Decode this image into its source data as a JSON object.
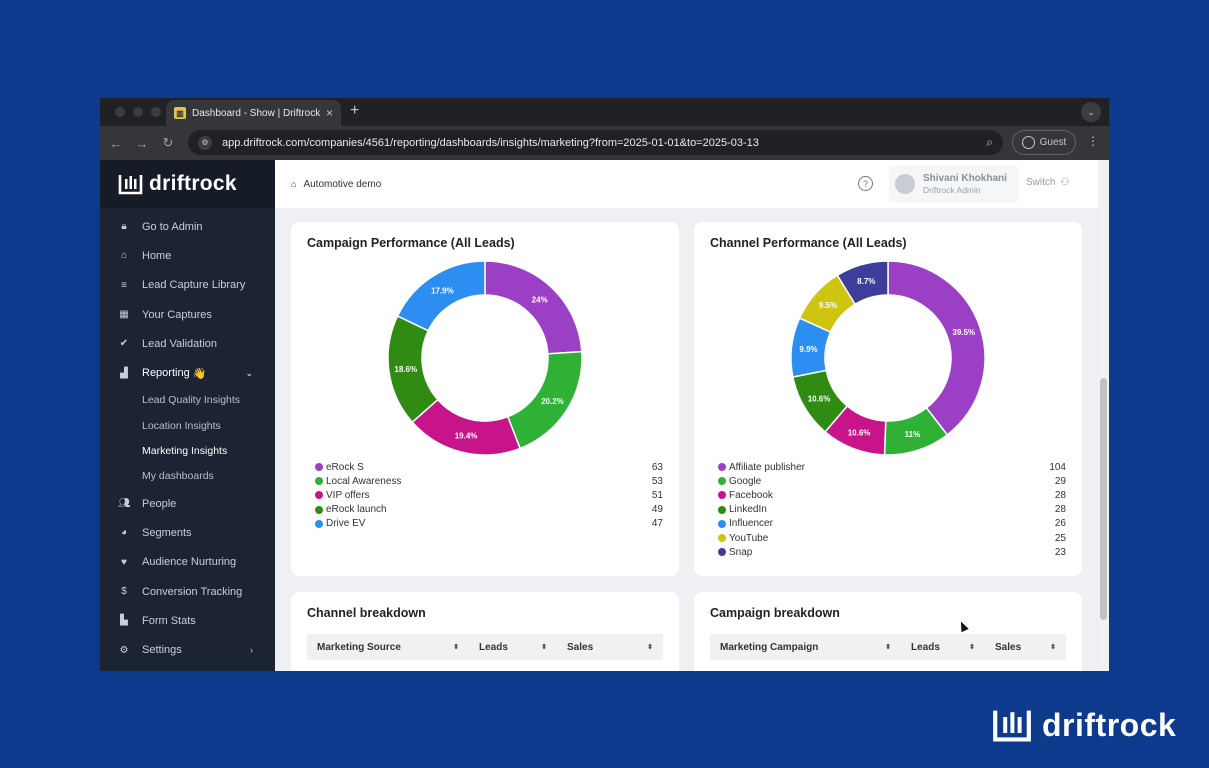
{
  "browser": {
    "tab_title": "Dashboard - Show | Driftrock",
    "url": "app.driftrock.com/companies/4561/reporting/dashboards/insights/marketing?from=2025-01-01&to=2025-03-13",
    "profile": "Guest"
  },
  "sidebar": {
    "brand": "driftrock",
    "items": [
      {
        "label": "Go to Admin",
        "icon": "lock-icon"
      },
      {
        "label": "Home",
        "icon": "home-icon"
      },
      {
        "label": "Lead Capture Library",
        "icon": "filter-icon"
      },
      {
        "label": "Your Captures",
        "icon": "grid-icon"
      },
      {
        "label": "Lead Validation",
        "icon": "check-circle-icon"
      },
      {
        "label": "Reporting",
        "icon": "bar-chart-icon",
        "emoji": "👋"
      },
      {
        "label": "Lead Quality Insights"
      },
      {
        "label": "Location Insights"
      },
      {
        "label": "Marketing Insights"
      },
      {
        "label": "My dashboards"
      },
      {
        "label": "People",
        "icon": "people-icon"
      },
      {
        "label": "Segments",
        "icon": "pie-icon"
      },
      {
        "label": "Audience Nurturing",
        "icon": "heart-icon"
      },
      {
        "label": "Conversion Tracking",
        "icon": "dollar-icon"
      },
      {
        "label": "Form Stats",
        "icon": "chart-icon"
      },
      {
        "label": "Settings",
        "icon": "gear-icon"
      }
    ]
  },
  "header": {
    "breadcrumb": "Automotive demo",
    "user_name": "Shivani Khokhani",
    "user_role": "Driftrock Admin",
    "switch_label": "Switch"
  },
  "campaign_card": {
    "title": "Campaign Performance (All Leads)"
  },
  "channel_card": {
    "title": "Channel Performance (All Leads)"
  },
  "channel_table": {
    "title": "Channel breakdown",
    "columns": [
      "Marketing Source",
      "Leads",
      "Sales"
    ]
  },
  "campaign_table": {
    "title": "Campaign breakdown",
    "columns": [
      "Marketing Campaign",
      "Leads",
      "Sales"
    ]
  },
  "chart_data": [
    {
      "type": "pie",
      "title": "Campaign Performance (All Leads)",
      "categories": [
        "eRock S",
        "Local Awareness",
        "VIP offers",
        "eRock launch",
        "Drive EV"
      ],
      "values": [
        63,
        53,
        51,
        49,
        47
      ],
      "percent_labels": [
        "24%",
        "20.2%",
        "19.4%",
        "18.6%",
        "17.9%"
      ],
      "colors": [
        "#9b3fc4",
        "#2fb136",
        "#c8148a",
        "#2f8b12",
        "#2b8ef0"
      ]
    },
    {
      "type": "pie",
      "title": "Channel Performance (All Leads)",
      "categories": [
        "Affiliate publisher",
        "Google",
        "Facebook",
        "LinkedIn",
        "Influencer",
        "YouTube",
        "Snap"
      ],
      "values": [
        104,
        29,
        28,
        28,
        26,
        25,
        23
      ],
      "percent_labels": [
        "39.5%",
        "11%",
        "10.6%",
        "10.6%",
        "9.9%",
        "9.5%",
        "8.7%"
      ],
      "colors": [
        "#9b3fc4",
        "#2fb136",
        "#c8148a",
        "#2f8b12",
        "#2b8ef0",
        "#cfc511",
        "#3f3d9a"
      ]
    }
  ],
  "footer_brand": "driftrock"
}
